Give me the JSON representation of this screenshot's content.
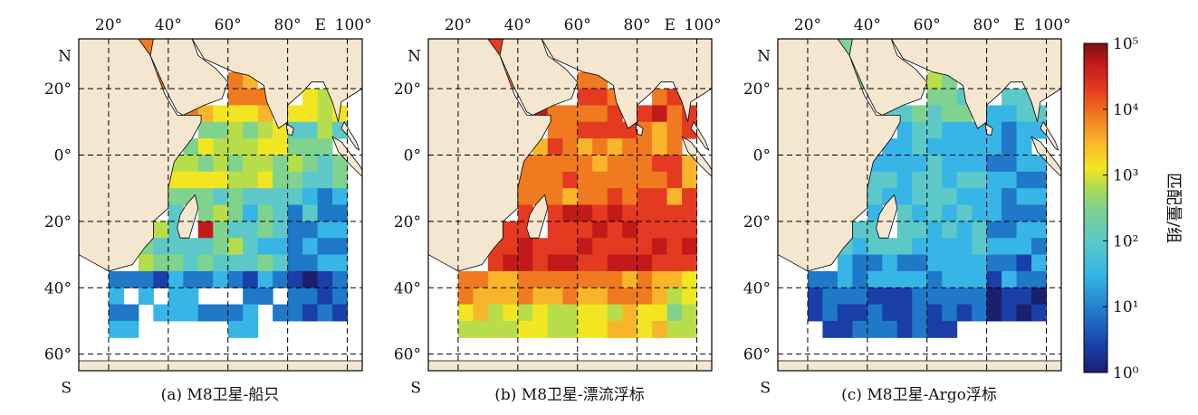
{
  "figure": {
    "panels": [
      {
        "id": "a",
        "caption": "(a) M8卫星-船只",
        "dataset": "ship",
        "lon_labels": [
          "20°",
          "40°",
          "60°",
          "80°",
          "E",
          "100°"
        ],
        "lat_labels": [
          "N",
          "20°",
          "0°",
          "20°",
          "40°",
          "60°",
          "S"
        ]
      },
      {
        "id": "b",
        "caption": "(b) M8卫星-漂流浮标",
        "dataset": "drifter",
        "lon_labels": [
          "20°",
          "40°",
          "60°",
          "80°",
          "E",
          "100°"
        ],
        "lat_labels": [
          "N",
          "20°",
          "0°",
          "20°",
          "40°",
          "60°",
          "S"
        ]
      },
      {
        "id": "c",
        "caption": "(c) M8卫星-Argo浮标",
        "dataset": "argo",
        "lon_labels": [
          "20°",
          "40°",
          "60°",
          "80°",
          "E",
          "100°"
        ],
        "lat_labels": [
          "N",
          "20°",
          "0°",
          "20°",
          "40°",
          "60°",
          "S"
        ]
      }
    ],
    "colorbar": {
      "label": "匹配量/组",
      "tick_labels": [
        "10⁵",
        "10⁴",
        "10³",
        "10²",
        "10¹",
        "10⁰"
      ],
      "min_exp": 0,
      "max_exp": 5,
      "colors": [
        "#1a1f6e",
        "#1a3fa8",
        "#1f78c8",
        "#37b5e6",
        "#5cc8c8",
        "#7fd38e",
        "#b7dd4a",
        "#f2e622",
        "#f8b52a",
        "#f07a20",
        "#e53a22",
        "#c21a1a",
        "#7a1010"
      ]
    },
    "map": {
      "lon_range": [
        10,
        105
      ],
      "lat_range": [
        -65,
        35
      ],
      "land_color": "#f5e6d0",
      "ocean_nodata_color": "#ffffff"
    }
  }
}
